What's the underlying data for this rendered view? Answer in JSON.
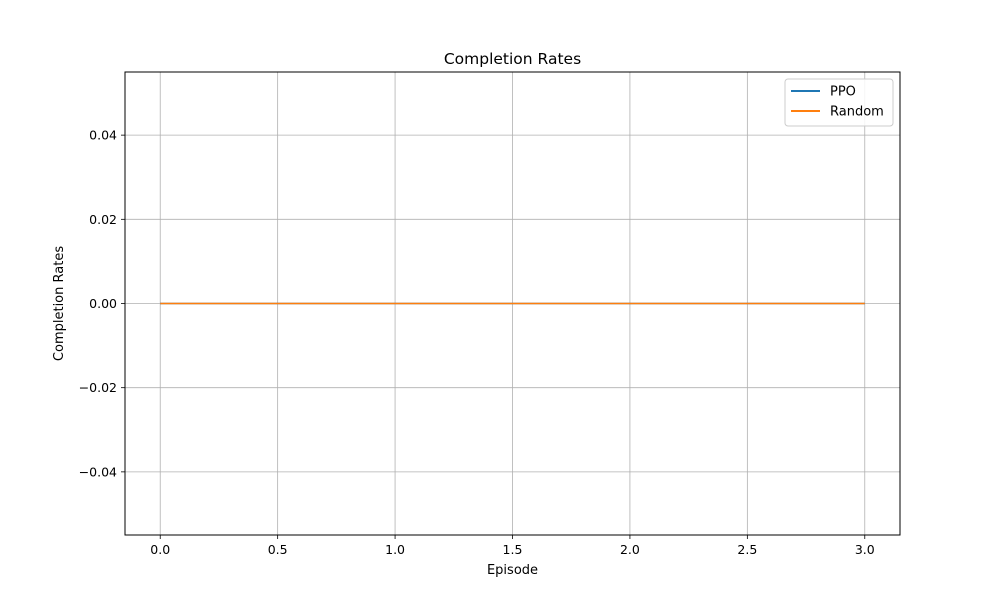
{
  "chart_data": {
    "type": "line",
    "title": "Completion Rates",
    "xlabel": "Episode",
    "ylabel": "Completion Rates",
    "xlim": [
      -0.15,
      3.15
    ],
    "ylim": [
      -0.055,
      0.055
    ],
    "x_ticks": [
      0.0,
      0.5,
      1.0,
      1.5,
      2.0,
      2.5,
      3.0
    ],
    "x_tick_labels": [
      "0.0",
      "0.5",
      "1.0",
      "1.5",
      "2.0",
      "2.5",
      "3.0"
    ],
    "y_ticks": [
      0.04,
      0.02,
      0.0,
      -0.02,
      -0.04
    ],
    "y_tick_labels": [
      "0.04",
      "0.02",
      "0.00",
      "−0.02",
      "−0.04"
    ],
    "grid": true,
    "legend_position": "top-right",
    "x": [
      0,
      1,
      2,
      3
    ],
    "series": [
      {
        "name": "PPO",
        "values": [
          0,
          0,
          0,
          0
        ],
        "color": "#1f77b4"
      },
      {
        "name": "Random",
        "values": [
          0,
          0,
          0,
          0
        ],
        "color": "#ff7f0e"
      }
    ]
  }
}
